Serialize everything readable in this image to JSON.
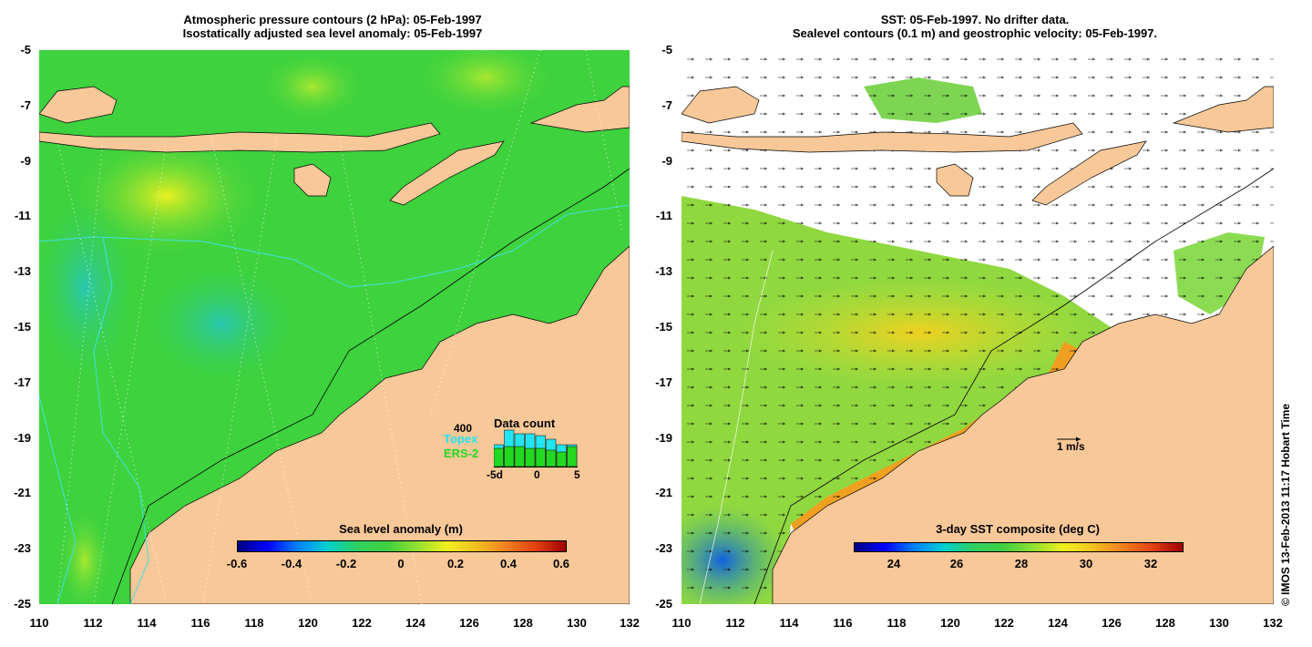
{
  "left_panel": {
    "title_line1": "Atmospheric pressure contours (2 hPa): 05-Feb-1997",
    "title_line2": "Isostatically adjusted sea level anomaly: 05-Feb-1997",
    "y_ticks": [
      "-5",
      "-7",
      "-9",
      "-11",
      "-13",
      "-15",
      "-17",
      "-19",
      "-21",
      "-23",
      "-25"
    ],
    "x_ticks": [
      "110",
      "112",
      "114",
      "116",
      "118",
      "120",
      "122",
      "124",
      "126",
      "128",
      "130",
      "132"
    ],
    "colorbar": {
      "title": "Sea level anomaly (m)",
      "labels": [
        "-0.6",
        "-0.4",
        "-0.2",
        "0",
        "0.2",
        "0.4",
        "0.6"
      ]
    },
    "inset": {
      "title": "Data count",
      "max_label": "400",
      "series1": "Topex",
      "series2": "ERS-2",
      "x_labels": [
        "-5d",
        "0",
        "5"
      ],
      "topex_color": "#22e5f2",
      "ers2_color": "#22d922",
      "topex_values": [
        0.6,
        1.0,
        0.9,
        0.9,
        0.85,
        0.75,
        0.6,
        0.6
      ],
      "ers2_values": [
        0.5,
        0.55,
        0.55,
        0.5,
        0.5,
        0.45,
        0.4,
        0.55
      ]
    }
  },
  "right_panel": {
    "title_line1": "SST: 05-Feb-1997. No drifter data.",
    "title_line2": "Sealevel contours (0.1 m) and geostrophic velocity: 05-Feb-1997.",
    "y_ticks": [
      "-5",
      "-7",
      "-9",
      "-11",
      "-13",
      "-15",
      "-17",
      "-19",
      "-21",
      "-23",
      "-25"
    ],
    "x_ticks": [
      "110",
      "112",
      "114",
      "116",
      "118",
      "120",
      "122",
      "124",
      "126",
      "128",
      "130",
      "132"
    ],
    "velocity_label": "1 m/s",
    "colorbar": {
      "title": "3-day SST composite (deg C)",
      "labels": [
        "24",
        "26",
        "28",
        "30",
        "32"
      ]
    }
  },
  "copyright": "© IMOS 13-Feb-2013 11:17 Hobart Time",
  "colors": {
    "land": "#f8c898",
    "sea_base": "#3ed23e",
    "sst_warm": "#f0a020"
  }
}
